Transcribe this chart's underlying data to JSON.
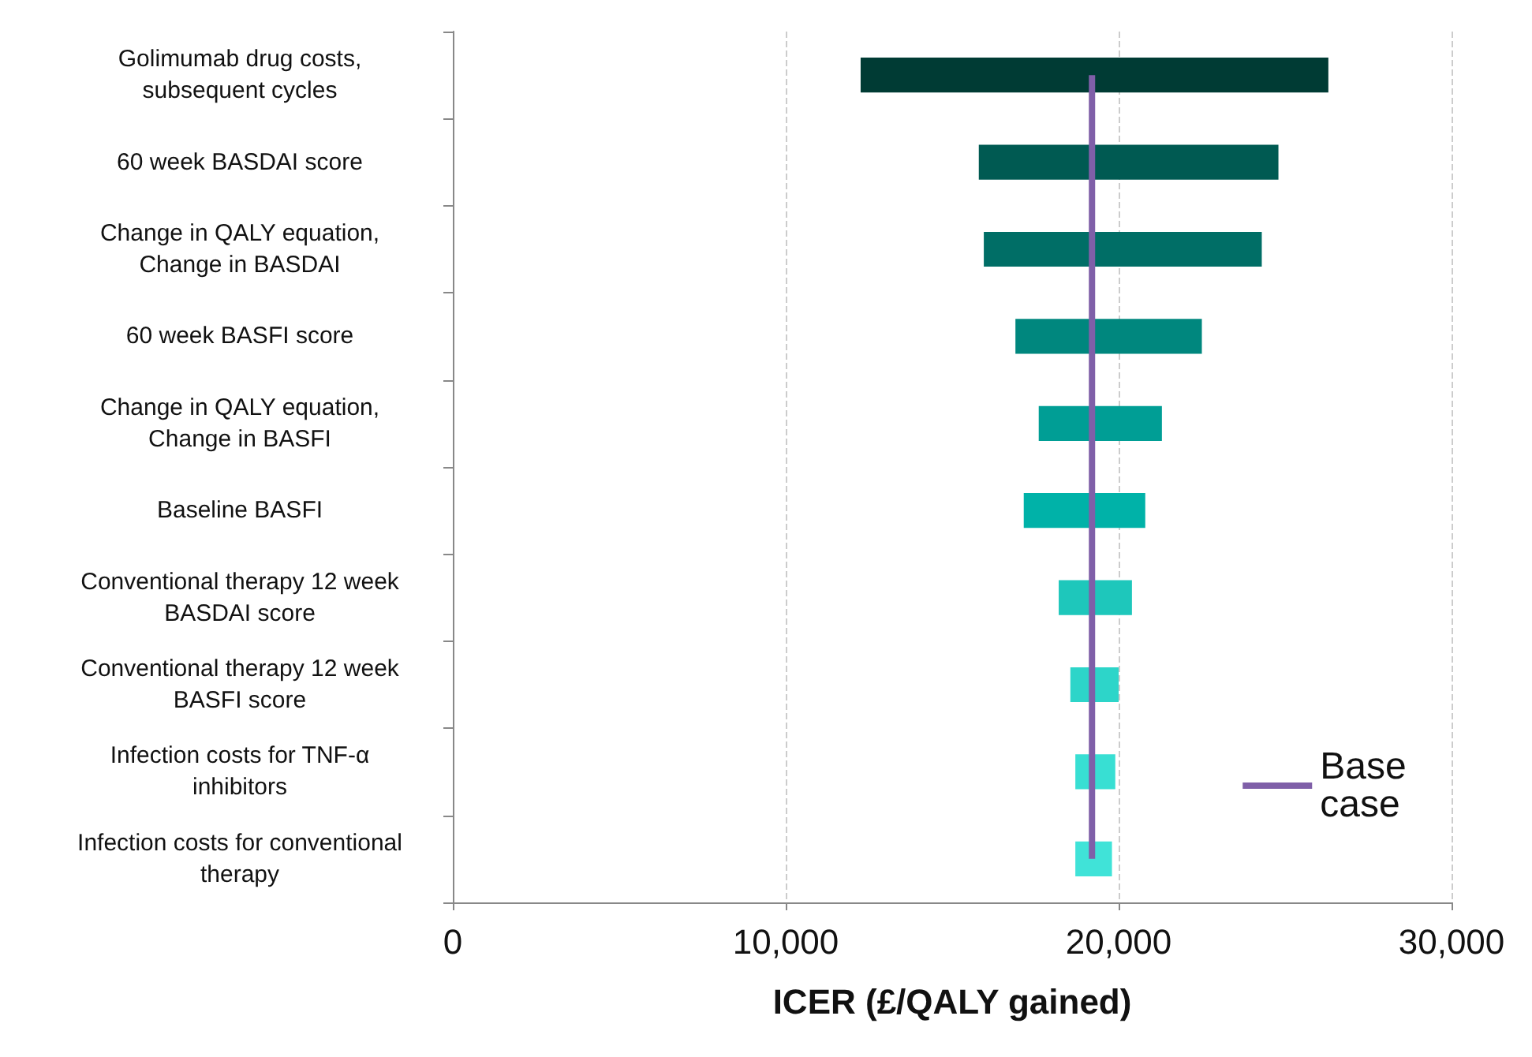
{
  "chart_data": {
    "type": "bar",
    "orientation": "horizontal",
    "categories": [
      "Golimumab drug costs,\nsubsequent cycles",
      "60 week BASDAI score",
      "Change in QALY equation,\nChange in BASDAI",
      "60 week BASFI score",
      "Change in QALY equation,\nChange in BASFI",
      "Baseline BASFI",
      "Conventional therapy 12 week\nBASDAI score",
      "Conventional therapy 12 week\nBASFI score",
      "Infection costs for TNF-α\ninhibitors",
      "Infection costs for conventional\ntherapy"
    ],
    "series": [
      {
        "base": [
          12250,
          15800,
          15950,
          16900,
          17600,
          17150,
          18200,
          18550,
          18700,
          18700
        ],
        "values": [
          14050,
          9000,
          8350,
          5600,
          3700,
          3650,
          2200,
          1450,
          1200,
          1100
        ],
        "colors": [
          "#003b34",
          "#005a52",
          "#006e66",
          "#00877e",
          "#009e95",
          "#00b2a8",
          "#1ec7bb",
          "#2dd5c9",
          "#38dfd3",
          "#40e3d8"
        ]
      },
      {
        "type": "line",
        "name": "Base case",
        "color": "#7f5fa8",
        "values": [
          19200,
          19200,
          19200,
          19200,
          19200,
          19200,
          19200,
          19200,
          19200,
          19200
        ]
      }
    ],
    "xlim": [
      0,
      30000
    ],
    "xticks": [
      0,
      {
        "value": 10000,
        "label": "10,000"
      },
      {
        "value": 20000,
        "label": "20,000"
      },
      {
        "value": 30000,
        "label": "30,000"
      }
    ],
    "xlabel": "ICER (£/QALY gained)",
    "grid": "x",
    "marker": "none",
    "legend": "bottom right"
  }
}
